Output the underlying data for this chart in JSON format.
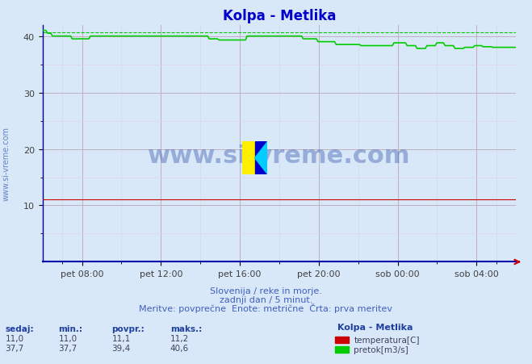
{
  "title": "Kolpa - Metlika",
  "title_color": "#0000cc",
  "bg_color": "#d8e8f8",
  "plot_bg_color": "#d8e8f8",
  "xlabel_ticks": [
    "pet 08:00",
    "pet 12:00",
    "pet 16:00",
    "pet 20:00",
    "sob 00:00",
    "sob 04:00"
  ],
  "tick_positions": [
    0.0833,
    0.25,
    0.4167,
    0.5833,
    0.75,
    0.9167
  ],
  "ylim": [
    0,
    42
  ],
  "yticks": [
    10,
    20,
    30,
    40
  ],
  "temp_color": "#cc0000",
  "flow_color": "#00cc00",
  "dashed_color": "#00cc00",
  "axis_line_color": "#0000aa",
  "arrow_color": "#cc0000",
  "watermark_text": "www.si-vreme.com",
  "watermark_color": "#2040a0",
  "watermark_alpha": 0.35,
  "footer_line1": "Slovenija / reke in morje.",
  "footer_line2": "zadnji dan / 5 minut.",
  "footer_line3": "Meritve: povprečne  Enote: metrične  Črta: prva meritev",
  "footer_color": "#4060c0",
  "legend_title": "Kolpa - Metlika",
  "legend_entries": [
    "temperatura[C]",
    "pretok[m3/s]"
  ],
  "legend_colors": [
    "#cc0000",
    "#00cc00"
  ],
  "stats_headers": [
    "sedaj:",
    "min.:",
    "povpr.:",
    "maks.:"
  ],
  "stats_temp": [
    11.0,
    11.0,
    11.1,
    11.2
  ],
  "stats_flow": [
    37.7,
    37.7,
    39.4,
    40.6
  ],
  "flow_max": 40.6
}
